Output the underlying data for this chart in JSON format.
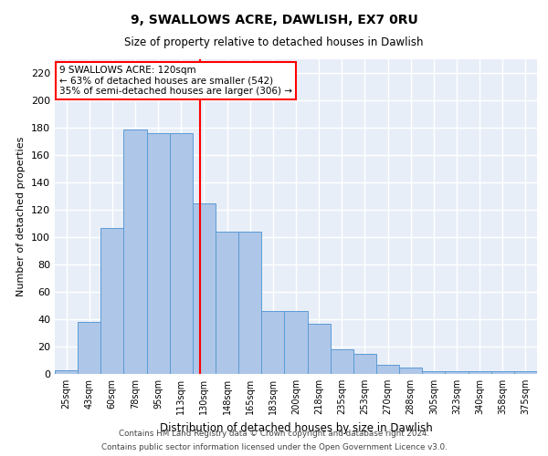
{
  "title": "9, SWALLOWS ACRE, DAWLISH, EX7 0RU",
  "subtitle": "Size of property relative to detached houses in Dawlish",
  "xlabel": "Distribution of detached houses by size in Dawlish",
  "ylabel": "Number of detached properties",
  "categories": [
    "25sqm",
    "43sqm",
    "60sqm",
    "78sqm",
    "95sqm",
    "113sqm",
    "130sqm",
    "148sqm",
    "165sqm",
    "183sqm",
    "200sqm",
    "218sqm",
    "235sqm",
    "253sqm",
    "270sqm",
    "288sqm",
    "305sqm",
    "323sqm",
    "340sqm",
    "358sqm",
    "375sqm"
  ],
  "bar_heights": [
    3,
    38,
    107,
    179,
    176,
    176,
    125,
    104,
    104,
    46,
    46,
    37,
    18,
    15,
    7,
    5,
    2,
    2,
    2,
    2,
    2
  ],
  "bar_color": "#aec6e8",
  "bar_edgecolor": "#5b9bd5",
  "vline_color": "red",
  "annotation_text": "9 SWALLOWS ACRE: 120sqm\n← 63% of detached houses are smaller (542)\n35% of semi-detached houses are larger (306) →",
  "annotation_box_color": "white",
  "annotation_box_edgecolor": "red",
  "ylim": [
    0,
    230
  ],
  "yticks": [
    0,
    20,
    40,
    60,
    80,
    100,
    120,
    140,
    160,
    180,
    200,
    220
  ],
  "footer1": "Contains HM Land Registry data © Crown copyright and database right 2024.",
  "footer2": "Contains public sector information licensed under the Open Government Licence v3.0.",
  "bg_color": "#e8eef8",
  "grid_color": "white",
  "title_fontsize": 10,
  "subtitle_fontsize": 9
}
